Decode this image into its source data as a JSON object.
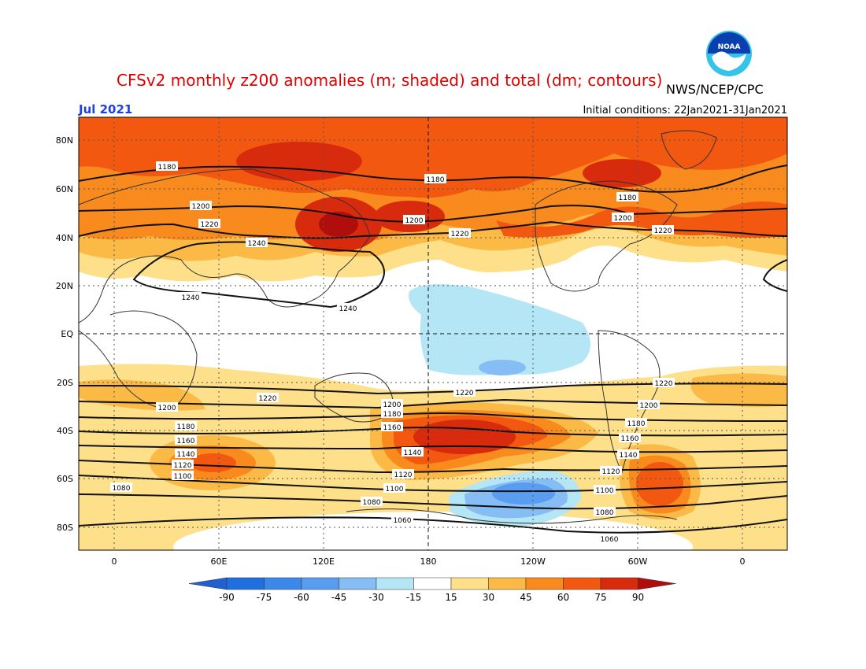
{
  "header": {
    "title": "CFSv2 monthly z200 anomalies (m; shaded) and total (dm; contours)",
    "agency": "NWS/NCEP/CPC",
    "month": "Jul 2021",
    "initial_conditions": "Initial conditions: 22Jan2021-31Jan2021",
    "logo_text": "NOAA"
  },
  "map": {
    "lat_labels": [
      "80N",
      "60N",
      "40N",
      "20N",
      "EQ",
      "20S",
      "40S",
      "60S",
      "80S"
    ],
    "lon_labels": [
      "0",
      "60E",
      "120E",
      "180",
      "120W",
      "60W",
      "0"
    ]
  },
  "contour_labels": [
    {
      "name": "c1180-a",
      "text": "1180"
    },
    {
      "name": "c1180-b",
      "text": "1180"
    },
    {
      "name": "c1180-c",
      "text": "1180"
    },
    {
      "name": "c1200-a",
      "text": "1200"
    },
    {
      "name": "c1200-b",
      "text": "1200"
    },
    {
      "name": "c1200-c",
      "text": "1200"
    },
    {
      "name": "c1220-a",
      "text": "1220"
    },
    {
      "name": "c1220-b",
      "text": "1220"
    },
    {
      "name": "c1220-c",
      "text": "1220"
    },
    {
      "name": "c1240-a",
      "text": "1240"
    },
    {
      "name": "c1240-b",
      "text": "1240"
    },
    {
      "name": "c1240-c",
      "text": "1240"
    },
    {
      "name": "s1220-a",
      "text": "1220"
    },
    {
      "name": "s1220-b",
      "text": "1220"
    },
    {
      "name": "s1220-c",
      "text": "1220"
    },
    {
      "name": "s1200-a",
      "text": "1200"
    },
    {
      "name": "s1200-b",
      "text": "1200"
    },
    {
      "name": "s1200-c",
      "text": "1200"
    },
    {
      "name": "s1180-a",
      "text": "1180"
    },
    {
      "name": "s1180-b",
      "text": "1180"
    },
    {
      "name": "s1180-c",
      "text": "1180"
    },
    {
      "name": "s1160-a",
      "text": "1160"
    },
    {
      "name": "s1160-b",
      "text": "1160"
    },
    {
      "name": "s1160-c",
      "text": "1160"
    },
    {
      "name": "s1140-a",
      "text": "1140"
    },
    {
      "name": "s1140-b",
      "text": "1140"
    },
    {
      "name": "s1140-c",
      "text": "1140"
    },
    {
      "name": "s1120-a",
      "text": "1120"
    },
    {
      "name": "s1120-b",
      "text": "1120"
    },
    {
      "name": "s1120-c",
      "text": "1120"
    },
    {
      "name": "s1100-a",
      "text": "1100"
    },
    {
      "name": "s1100-b",
      "text": "1100"
    },
    {
      "name": "s1100-c",
      "text": "1100"
    },
    {
      "name": "s1080-a",
      "text": "1080"
    },
    {
      "name": "s1080-b",
      "text": "1080"
    },
    {
      "name": "s1080-c",
      "text": "1080"
    },
    {
      "name": "s1060-a",
      "text": "1060"
    },
    {
      "name": "s1060-b",
      "text": "1060"
    }
  ],
  "colorbar": {
    "labels": [
      "-90",
      "-75",
      "-60",
      "-45",
      "-30",
      "-15",
      "15",
      "30",
      "45",
      "60",
      "75",
      "90"
    ],
    "colors": [
      "#1e6fe0",
      "#3c87ea",
      "#5a9df0",
      "#86bdf4",
      "#b4e6f5",
      "#ffffff",
      "#fde089",
      "#fbb945",
      "#f88a1e",
      "#f2580f",
      "#d82a0d"
    ],
    "end_low": "#2060d0",
    "end_high": "#b00d0d"
  }
}
